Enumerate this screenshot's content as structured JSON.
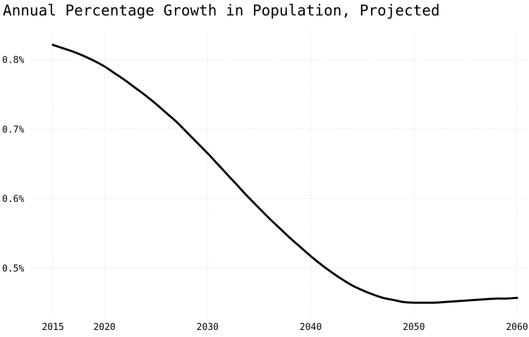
{
  "chart_data": {
    "type": "line",
    "title": "Annual Percentage Growth in Population, Projected",
    "xlabel": "",
    "ylabel": "",
    "x": [
      2015,
      2016,
      2017,
      2018,
      2019,
      2020,
      2021,
      2022,
      2023,
      2024,
      2025,
      2026,
      2027,
      2028,
      2029,
      2030,
      2031,
      2032,
      2033,
      2034,
      2035,
      2036,
      2037,
      2038,
      2039,
      2040,
      2041,
      2042,
      2043,
      2044,
      2045,
      2046,
      2047,
      2048,
      2049,
      2050,
      2051,
      2052,
      2053,
      2054,
      2055,
      2056,
      2057,
      2058,
      2059,
      2060
    ],
    "series": [
      {
        "values": [
          0.821,
          0.816,
          0.811,
          0.805,
          0.798,
          0.79,
          0.78,
          0.77,
          0.759,
          0.748,
          0.736,
          0.723,
          0.71,
          0.695,
          0.68,
          0.665,
          0.649,
          0.633,
          0.617,
          0.601,
          0.586,
          0.571,
          0.557,
          0.543,
          0.53,
          0.517,
          0.505,
          0.494,
          0.484,
          0.475,
          0.468,
          0.462,
          0.457,
          0.454,
          0.451,
          0.45,
          0.45,
          0.45,
          0.451,
          0.452,
          0.453,
          0.454,
          0.455,
          0.456,
          0.456,
          0.457
        ],
        "color": "#000000"
      }
    ],
    "x_ticks": [
      "2015",
      "2020",
      "2030",
      "2040",
      "2050",
      "2060"
    ],
    "y_ticks": [
      "0.5%",
      "0.6%",
      "0.7%",
      "0.8%"
    ],
    "y_tick_values": [
      0.5,
      0.6,
      0.7,
      0.8
    ],
    "x_tick_values": [
      2015,
      2020,
      2030,
      2040,
      2050,
      2060
    ],
    "xlim": [
      2015,
      2060
    ],
    "ylim": [
      0.43,
      0.84
    ],
    "grid": true,
    "grid_style": "dotted",
    "grid_color": "#d3d3d3",
    "legend": "none"
  }
}
